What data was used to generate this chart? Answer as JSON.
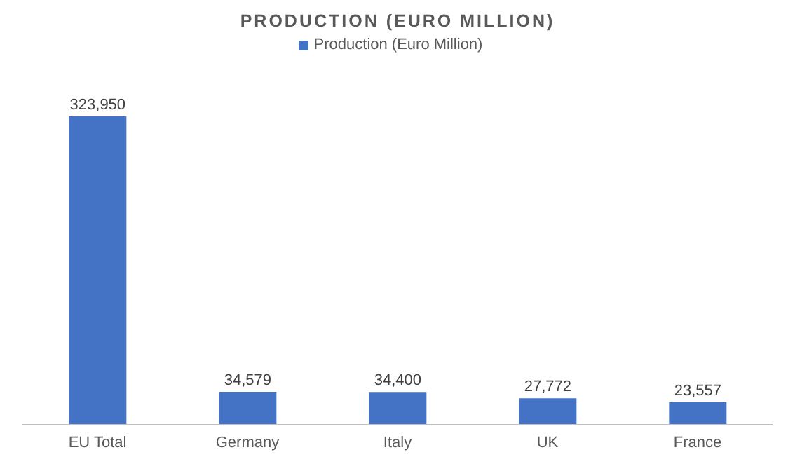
{
  "chart_data": {
    "type": "bar",
    "title": "PRODUCTION (EURO MILLION)",
    "categories": [
      "EU Total",
      "Germany",
      "Italy",
      "UK",
      "France"
    ],
    "series": [
      {
        "name": "Production (Euro Million)",
        "color": "#4472c4",
        "values": [
          323950,
          34579,
          34400,
          27772,
          23557
        ],
        "value_labels": [
          "323,950",
          "34,579",
          "34,400",
          "27,772",
          "23,557"
        ]
      }
    ],
    "legend": "top",
    "grid": false
  }
}
